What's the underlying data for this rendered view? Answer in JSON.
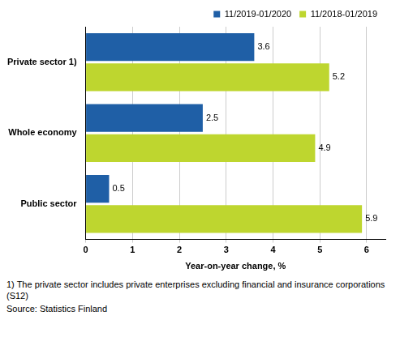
{
  "chart_data": {
    "type": "bar",
    "orientation": "horizontal",
    "categories": [
      "Private sector 1)",
      "Whole economy",
      "Public sector"
    ],
    "series": [
      {
        "name": "11/2019-01/2020",
        "color": "#1f5fa6",
        "values": [
          3.6,
          2.5,
          0.5
        ]
      },
      {
        "name": "11/2018-01/2019",
        "color": "#bed62f",
        "values": [
          5.2,
          4.9,
          5.9
        ]
      }
    ],
    "xlabel": "Year-on-year change, %",
    "xlim": [
      0,
      6.4
    ],
    "xticks": [
      0,
      1,
      2,
      3,
      4,
      5,
      6
    ],
    "grid": true,
    "legend": "top-right",
    "data_labels": true,
    "annotations": [
      "1) The private sector includes private enterprises excluding financial and insurance corporations (S12)",
      "Source: Statistics Finland"
    ]
  }
}
